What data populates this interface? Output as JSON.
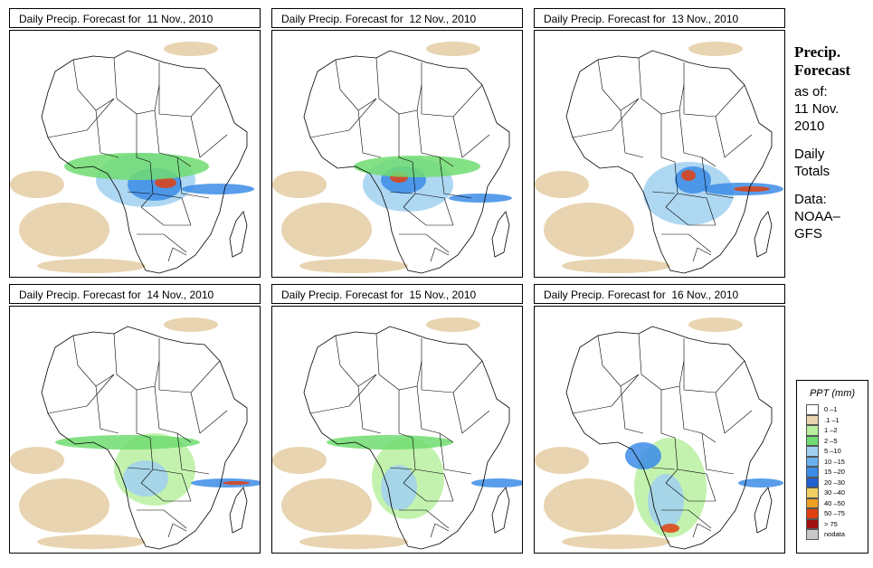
{
  "panels": [
    {
      "title": "Daily Precip. Forecast for  11 Nov., 2010",
      "day": 11
    },
    {
      "title": "Daily Precip. Forecast for  12 Nov., 2010",
      "day": 12
    },
    {
      "title": "Daily Precip. Forecast for  13 Nov., 2010",
      "day": 13
    },
    {
      "title": "Daily Precip. Forecast for  14 Nov., 2010",
      "day": 14
    },
    {
      "title": "Daily Precip. Forecast for  15 Nov., 2010",
      "day": 15
    },
    {
      "title": "Daily Precip. Forecast for  16 Nov., 2010",
      "day": 16
    }
  ],
  "info": {
    "heading_line1": "Precip.",
    "heading_line2": "Forecast",
    "as_of": "as of:",
    "date_line1": "11 Nov.",
    "date_line2": "2010",
    "totals_line1": "Daily",
    "totals_line2": "Totals",
    "data_line1": "Data:",
    "data_line2": "NOAA–",
    "data_line3": "GFS"
  },
  "legend": {
    "title": "PPT (mm)",
    "items": [
      {
        "label": "0 –1",
        "color": "#ffffff"
      },
      {
        "label": ".1 –1",
        "color": "#e8d4b0"
      },
      {
        "label": "1 –2",
        "color": "#b8f0a0"
      },
      {
        "label": "2 –5",
        "color": "#70dc70"
      },
      {
        "label": "5 –10",
        "color": "#a0d0f0"
      },
      {
        "label": "10 –15",
        "color": "#6ab0f0"
      },
      {
        "label": "15 –20",
        "color": "#3c8ce8"
      },
      {
        "label": "20 –30",
        "color": "#2060d0"
      },
      {
        "label": "30 –40",
        "color": "#f0d060"
      },
      {
        "label": "40 –50",
        "color": "#f0a020"
      },
      {
        "label": "50 –75",
        "color": "#e04010"
      },
      {
        "label": "> 75",
        "color": "#a01010"
      },
      {
        "label": "nodata",
        "color": "#c8c8c8"
      }
    ]
  }
}
